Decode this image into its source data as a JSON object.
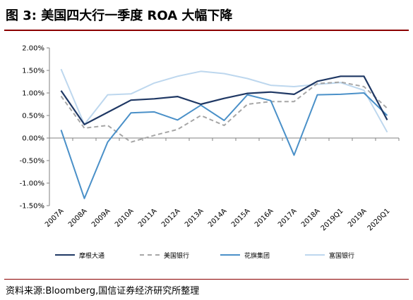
{
  "header": {
    "title": "图 3:  美国四大行一季度 ROA 大幅下降"
  },
  "footer": {
    "source": "资料来源:Bloomberg,国信证券经济研究所整理"
  },
  "chart_data": {
    "type": "line",
    "title": "图 3:  美国四大行一季度 ROA 大幅下降",
    "xlabel": "",
    "ylabel": "",
    "ylim": [
      -1.5,
      2.0
    ],
    "yticks": [
      -1.5,
      -1.0,
      -0.5,
      0.0,
      0.5,
      1.0,
      1.5,
      2.0
    ],
    "ytick_labels": [
      "-1.50%",
      "-1.00%",
      "-0.50%",
      "0.00%",
      "0.50%",
      "1.00%",
      "1.50%",
      "2.00%"
    ],
    "categories": [
      "2007A",
      "2008A",
      "2009A",
      "2010A",
      "2011A",
      "2012A",
      "2013A",
      "2014A",
      "2015A",
      "2016A",
      "2017A",
      "2018A",
      "2019Q1",
      "2019A",
      "2020Q1"
    ],
    "grid": false,
    "legend_position": "bottom",
    "series": [
      {
        "name": "摩根大通",
        "color": "#1F3864",
        "dash": "solid",
        "width": 2.2,
        "values": [
          1.05,
          0.3,
          0.57,
          0.84,
          0.87,
          0.92,
          0.75,
          0.88,
          0.99,
          1.02,
          0.97,
          1.26,
          1.37,
          1.37,
          0.4
        ]
      },
      {
        "name": "美国银行",
        "color": "#A6A6A6",
        "dash": "dashed",
        "width": 2,
        "values": [
          0.93,
          0.22,
          0.28,
          -0.09,
          0.06,
          0.19,
          0.5,
          0.28,
          0.75,
          0.81,
          0.81,
          1.21,
          1.24,
          1.14,
          0.66
        ]
      },
      {
        "name": "花旗集团",
        "color": "#4A90C8",
        "dash": "solid",
        "width": 2,
        "values": [
          0.18,
          -1.34,
          -0.09,
          0.56,
          0.58,
          0.4,
          0.73,
          0.39,
          0.96,
          0.83,
          -0.38,
          0.96,
          0.97,
          1.0,
          0.5
        ]
      },
      {
        "name": "富国银行",
        "color": "#BDD7EE",
        "dash": "solid",
        "width": 2,
        "values": [
          1.53,
          0.3,
          0.96,
          0.98,
          1.22,
          1.37,
          1.48,
          1.43,
          1.32,
          1.17,
          1.14,
          1.19,
          1.23,
          1.06,
          0.13
        ]
      }
    ]
  }
}
